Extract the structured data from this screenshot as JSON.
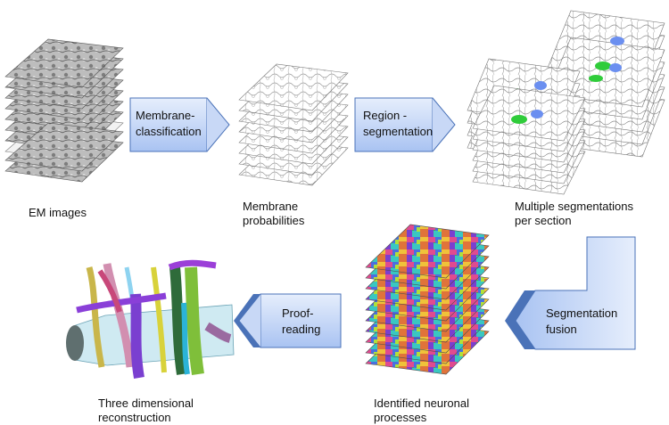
{
  "stages": {
    "em_images": "EM images",
    "membrane_probabilities": "Membrane\nprobabilities",
    "multiple_segmentations": "Multiple segmentations\nper section",
    "identified_processes": "Identified neuronal\nprocesses",
    "reconstruction": "Three dimensional\nreconstruction"
  },
  "steps": {
    "membrane_classification": "Membrane-\nclassification",
    "region_segmentation": "Region -\nsegmentation",
    "segmentation_fusion": "Segmentation\nfusion",
    "proofreading": "Proof-\nreading"
  },
  "colors": {
    "arrow_fill_light": "#dce8fb",
    "arrow_fill_dark": "#a9c3f2",
    "arrow_edge": "#4a72b8",
    "green_region": "#2fcc3a",
    "blue_region": "#6b8ff0"
  }
}
